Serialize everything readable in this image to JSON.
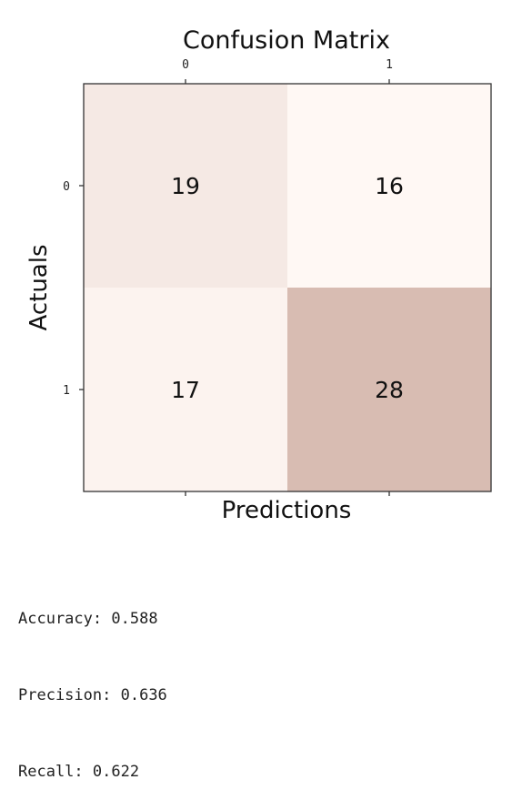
{
  "chart_data": {
    "type": "heatmap",
    "title": "Confusion Matrix",
    "xlabel": "Predictions",
    "ylabel": "Actuals",
    "x_categories": [
      "0",
      "1"
    ],
    "y_categories": [
      "0",
      "1"
    ],
    "values": [
      [
        19,
        16
      ],
      [
        17,
        28
      ]
    ],
    "x_axis_position": "top",
    "grid": false,
    "colors": {
      "low": "#fff8f4",
      "high": "#d8bcb2"
    }
  },
  "metrics": [
    {
      "label": "Accuracy",
      "value": "0.588"
    },
    {
      "label": "Precision",
      "value": "0.636"
    },
    {
      "label": "Recall",
      "value": "0.622"
    }
  ]
}
